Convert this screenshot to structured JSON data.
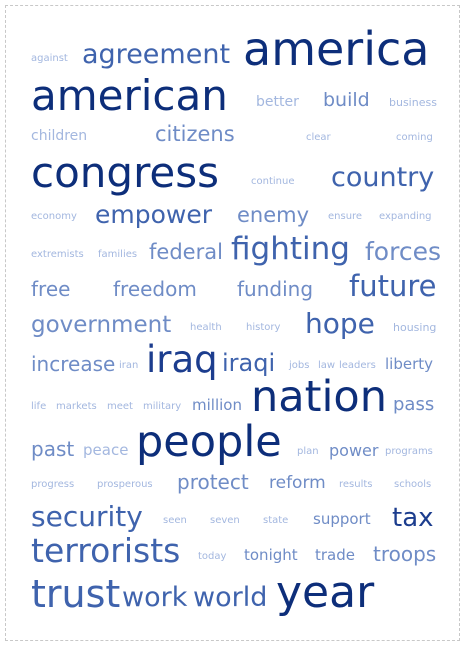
{
  "cloud": {
    "palette": {
      "darkest": "#0d2e7a",
      "dark": "#1c3d8e",
      "medium": "#3f63ad",
      "light": "#6f8cc6",
      "pale": "#a3b7df"
    },
    "words": [
      {
        "text": "against",
        "tone": "pale"
      },
      {
        "text": "agreement",
        "tone": "medium"
      },
      {
        "text": "america",
        "tone": "darkest"
      },
      {
        "text": "american",
        "tone": "darkest"
      },
      {
        "text": "better",
        "tone": "pale"
      },
      {
        "text": "build",
        "tone": "light"
      },
      {
        "text": "business",
        "tone": "pale"
      },
      {
        "text": "children",
        "tone": "pale"
      },
      {
        "text": "citizens",
        "tone": "light"
      },
      {
        "text": "clear",
        "tone": "pale"
      },
      {
        "text": "coming",
        "tone": "pale"
      },
      {
        "text": "congress",
        "tone": "darkest"
      },
      {
        "text": "continue",
        "tone": "pale"
      },
      {
        "text": "country",
        "tone": "medium"
      },
      {
        "text": "economy",
        "tone": "pale"
      },
      {
        "text": "empower",
        "tone": "medium"
      },
      {
        "text": "enemy",
        "tone": "light"
      },
      {
        "text": "ensure",
        "tone": "pale"
      },
      {
        "text": "expanding",
        "tone": "pale"
      },
      {
        "text": "extremists",
        "tone": "pale"
      },
      {
        "text": "families",
        "tone": "pale"
      },
      {
        "text": "federal",
        "tone": "light"
      },
      {
        "text": "fighting",
        "tone": "medium"
      },
      {
        "text": "forces",
        "tone": "light"
      },
      {
        "text": "free",
        "tone": "light"
      },
      {
        "text": "freedom",
        "tone": "light"
      },
      {
        "text": "funding",
        "tone": "light"
      },
      {
        "text": "future",
        "tone": "medium"
      },
      {
        "text": "government",
        "tone": "light"
      },
      {
        "text": "health",
        "tone": "pale"
      },
      {
        "text": "history",
        "tone": "pale"
      },
      {
        "text": "hope",
        "tone": "medium"
      },
      {
        "text": "housing",
        "tone": "pale"
      },
      {
        "text": "increase",
        "tone": "light"
      },
      {
        "text": "iran",
        "tone": "pale"
      },
      {
        "text": "iraq",
        "tone": "dark"
      },
      {
        "text": "iraqi",
        "tone": "medium"
      },
      {
        "text": "jobs",
        "tone": "pale"
      },
      {
        "text": "law",
        "tone": "pale"
      },
      {
        "text": "leaders",
        "tone": "pale"
      },
      {
        "text": "liberty",
        "tone": "light"
      },
      {
        "text": "life",
        "tone": "pale"
      },
      {
        "text": "markets",
        "tone": "pale"
      },
      {
        "text": "meet",
        "tone": "pale"
      },
      {
        "text": "military",
        "tone": "pale"
      },
      {
        "text": "million",
        "tone": "light"
      },
      {
        "text": "nation",
        "tone": "darkest"
      },
      {
        "text": "pass",
        "tone": "light"
      },
      {
        "text": "past",
        "tone": "light"
      },
      {
        "text": "peace",
        "tone": "pale"
      },
      {
        "text": "people",
        "tone": "darkest"
      },
      {
        "text": "plan",
        "tone": "pale"
      },
      {
        "text": "power",
        "tone": "light"
      },
      {
        "text": "programs",
        "tone": "pale"
      },
      {
        "text": "progress",
        "tone": "pale"
      },
      {
        "text": "prosperous",
        "tone": "pale"
      },
      {
        "text": "protect",
        "tone": "light"
      },
      {
        "text": "reform",
        "tone": "light"
      },
      {
        "text": "results",
        "tone": "pale"
      },
      {
        "text": "schools",
        "tone": "pale"
      },
      {
        "text": "security",
        "tone": "medium"
      },
      {
        "text": "seen",
        "tone": "pale"
      },
      {
        "text": "seven",
        "tone": "pale"
      },
      {
        "text": "state",
        "tone": "pale"
      },
      {
        "text": "support",
        "tone": "light"
      },
      {
        "text": "tax",
        "tone": "dark"
      },
      {
        "text": "terrorists",
        "tone": "medium"
      },
      {
        "text": "today",
        "tone": "pale"
      },
      {
        "text": "tonight",
        "tone": "light"
      },
      {
        "text": "trade",
        "tone": "light"
      },
      {
        "text": "troops",
        "tone": "light"
      },
      {
        "text": "trust",
        "tone": "medium"
      },
      {
        "text": "work",
        "tone": "medium"
      },
      {
        "text": "world",
        "tone": "medium"
      },
      {
        "text": "year",
        "tone": "darkest"
      }
    ]
  }
}
